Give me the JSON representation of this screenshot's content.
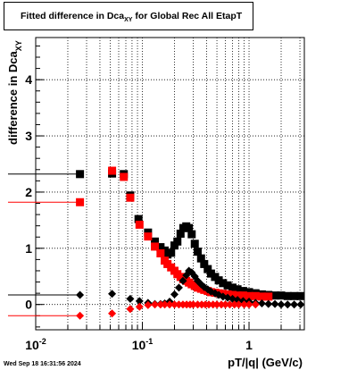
{
  "chart_data": {
    "type": "scatter",
    "title": "Fitted difference in Dca_XY for Global Rec All EtapT",
    "title_main": "Fitted difference in Dca",
    "title_sub": "XY",
    "title_tail": " for Global Rec All EtapT",
    "xlabel": "pT/|q| (GeV/c)",
    "ylabel_main": "difference in Dca",
    "ylabel_sub": "XY",
    "xscale": "log",
    "xlim": [
      0.01,
      3.3
    ],
    "ylim": [
      -0.45,
      4.75
    ],
    "grid": true,
    "x_tick_labels": [
      {
        "x": 0.01,
        "main": "10",
        "exp": "-2"
      },
      {
        "x": 0.1,
        "main": "10",
        "exp": "-1"
      },
      {
        "x": 1,
        "main": "1",
        "exp": ""
      }
    ],
    "y_tick_labels": [
      "0",
      "1",
      "2",
      "3",
      "4"
    ],
    "timestamp": "Wed Sep 18 16:31:56 2024",
    "series": [
      {
        "color": "#000000",
        "marker": "square",
        "points": [
          {
            "x": 0.026,
            "y": 2.32,
            "xerr": [
              0.0055,
              0.026
            ]
          },
          {
            "x": 0.052,
            "y": 2.33
          },
          {
            "x": 0.067,
            "y": 2.32
          },
          {
            "x": 0.077,
            "y": 1.94
          },
          {
            "x": 0.092,
            "y": 1.52,
            "xerr": [
              0.088,
              0.1
            ]
          },
          {
            "x": 0.113,
            "y": 1.28
          },
          {
            "x": 0.131,
            "y": 1.12
          },
          {
            "x": 0.148,
            "y": 1.02
          },
          {
            "x": 0.162,
            "y": 0.96
          },
          {
            "x": 0.172,
            "y": 0.89
          },
          {
            "x": 0.186,
            "y": 0.92
          },
          {
            "x": 0.2,
            "y": 1.05
          },
          {
            "x": 0.213,
            "y": 1.12
          },
          {
            "x": 0.228,
            "y": 1.26
          },
          {
            "x": 0.242,
            "y": 1.36
          },
          {
            "x": 0.258,
            "y": 1.39
          },
          {
            "x": 0.273,
            "y": 1.36
          },
          {
            "x": 0.29,
            "y": 1.25
          },
          {
            "x": 0.31,
            "y": 1.08
          },
          {
            "x": 0.33,
            "y": 0.94
          },
          {
            "x": 0.355,
            "y": 0.82
          },
          {
            "x": 0.38,
            "y": 0.72
          },
          {
            "x": 0.41,
            "y": 0.63
          },
          {
            "x": 0.44,
            "y": 0.55
          },
          {
            "x": 0.48,
            "y": 0.49
          },
          {
            "x": 0.52,
            "y": 0.43
          },
          {
            "x": 0.57,
            "y": 0.38
          },
          {
            "x": 0.63,
            "y": 0.34
          },
          {
            "x": 0.7,
            "y": 0.3
          },
          {
            "x": 0.78,
            "y": 0.27
          },
          {
            "x": 0.88,
            "y": 0.24
          },
          {
            "x": 1.0,
            "y": 0.22
          },
          {
            "x": 1.15,
            "y": 0.2
          },
          {
            "x": 1.32,
            "y": 0.18
          },
          {
            "x": 1.52,
            "y": 0.17
          },
          {
            "x": 1.75,
            "y": 0.16
          },
          {
            "x": 2.0,
            "y": 0.16
          },
          {
            "x": 2.3,
            "y": 0.15
          },
          {
            "x": 2.65,
            "y": 0.15
          },
          {
            "x": 3.05,
            "y": 0.15
          }
        ]
      },
      {
        "color": "#ff0000",
        "marker": "square",
        "points": [
          {
            "x": 0.026,
            "y": 1.82,
            "xerr": [
              0.0055,
              0.026
            ]
          },
          {
            "x": 0.052,
            "y": 2.38
          },
          {
            "x": 0.067,
            "y": 2.27
          },
          {
            "x": 0.077,
            "y": 1.9
          },
          {
            "x": 0.094,
            "y": 1.42
          },
          {
            "x": 0.113,
            "y": 1.21
          },
          {
            "x": 0.131,
            "y": 1.03
          },
          {
            "x": 0.148,
            "y": 0.91
          },
          {
            "x": 0.162,
            "y": 0.78
          },
          {
            "x": 0.172,
            "y": 0.72
          },
          {
            "x": 0.186,
            "y": 0.66
          },
          {
            "x": 0.2,
            "y": 0.6
          },
          {
            "x": 0.213,
            "y": 0.54
          },
          {
            "x": 0.228,
            "y": 0.49
          },
          {
            "x": 0.242,
            "y": 0.45
          },
          {
            "x": 0.258,
            "y": 0.42
          },
          {
            "x": 0.273,
            "y": 0.39
          },
          {
            "x": 0.29,
            "y": 0.36
          },
          {
            "x": 0.31,
            "y": 0.33
          },
          {
            "x": 0.33,
            "y": 0.3
          },
          {
            "x": 0.355,
            "y": 0.28
          },
          {
            "x": 0.38,
            "y": 0.26
          },
          {
            "x": 0.41,
            "y": 0.24
          },
          {
            "x": 0.44,
            "y": 0.22
          },
          {
            "x": 0.48,
            "y": 0.21
          },
          {
            "x": 0.52,
            "y": 0.2
          },
          {
            "x": 0.57,
            "y": 0.19
          },
          {
            "x": 0.63,
            "y": 0.18
          },
          {
            "x": 0.7,
            "y": 0.17
          },
          {
            "x": 0.78,
            "y": 0.16
          },
          {
            "x": 0.88,
            "y": 0.16
          },
          {
            "x": 1.0,
            "y": 0.15
          },
          {
            "x": 1.15,
            "y": 0.15
          },
          {
            "x": 1.32,
            "y": 0.14
          },
          {
            "x": 1.52,
            "y": 0.14
          }
        ]
      },
      {
        "color": "#000000",
        "marker": "diamond",
        "points": [
          {
            "x": 0.026,
            "y": 0.17,
            "xerr": [
              0.0055,
              0.026
            ]
          },
          {
            "x": 0.052,
            "y": 0.19
          },
          {
            "x": 0.077,
            "y": 0.1
          },
          {
            "x": 0.094,
            "y": 0.06
          },
          {
            "x": 0.113,
            "y": 0.03
          },
          {
            "x": 0.131,
            "y": 0.01
          },
          {
            "x": 0.148,
            "y": 0.01
          },
          {
            "x": 0.162,
            "y": 0.02
          },
          {
            "x": 0.18,
            "y": 0.05
          },
          {
            "x": 0.2,
            "y": 0.18
          },
          {
            "x": 0.22,
            "y": 0.3
          },
          {
            "x": 0.24,
            "y": 0.42
          },
          {
            "x": 0.258,
            "y": 0.52
          },
          {
            "x": 0.273,
            "y": 0.6
          },
          {
            "x": 0.29,
            "y": 0.57
          },
          {
            "x": 0.31,
            "y": 0.5
          },
          {
            "x": 0.33,
            "y": 0.42
          },
          {
            "x": 0.355,
            "y": 0.36
          },
          {
            "x": 0.38,
            "y": 0.31
          },
          {
            "x": 0.41,
            "y": 0.27
          },
          {
            "x": 0.44,
            "y": 0.23
          },
          {
            "x": 0.48,
            "y": 0.2
          },
          {
            "x": 0.52,
            "y": 0.17
          },
          {
            "x": 0.57,
            "y": 0.14
          },
          {
            "x": 0.63,
            "y": 0.12
          },
          {
            "x": 0.7,
            "y": 0.1
          },
          {
            "x": 0.78,
            "y": 0.08
          },
          {
            "x": 0.88,
            "y": 0.06
          },
          {
            "x": 1.0,
            "y": 0.05
          },
          {
            "x": 1.15,
            "y": 0.03
          },
          {
            "x": 1.32,
            "y": 0.02
          },
          {
            "x": 1.52,
            "y": 0.01
          },
          {
            "x": 1.75,
            "y": 0.01
          },
          {
            "x": 2.0,
            "y": 0.0
          },
          {
            "x": 2.3,
            "y": 0.0
          },
          {
            "x": 2.65,
            "y": 0.0
          },
          {
            "x": 3.05,
            "y": 0.0
          }
        ]
      },
      {
        "color": "#ff0000",
        "marker": "diamond",
        "points": [
          {
            "x": 0.026,
            "y": -0.2,
            "xerr": [
              0.0055,
              0.026
            ]
          },
          {
            "x": 0.052,
            "y": -0.16
          },
          {
            "x": 0.077,
            "y": -0.08
          },
          {
            "x": 0.094,
            "y": -0.04
          },
          {
            "x": 0.113,
            "y": -0.01
          },
          {
            "x": 0.131,
            "y": 0.0
          },
          {
            "x": 0.148,
            "y": 0.0
          },
          {
            "x": 0.162,
            "y": 0.0
          },
          {
            "x": 0.18,
            "y": 0.0
          },
          {
            "x": 0.2,
            "y": 0.0
          },
          {
            "x": 0.22,
            "y": 0.0
          },
          {
            "x": 0.24,
            "y": 0.0
          },
          {
            "x": 0.26,
            "y": 0.0
          },
          {
            "x": 0.28,
            "y": 0.0
          },
          {
            "x": 0.3,
            "y": 0.0
          },
          {
            "x": 0.33,
            "y": 0.0
          },
          {
            "x": 0.36,
            "y": 0.0
          },
          {
            "x": 0.39,
            "y": 0.0
          },
          {
            "x": 0.42,
            "y": 0.0
          },
          {
            "x": 0.46,
            "y": 0.0
          },
          {
            "x": 0.5,
            "y": 0.0
          },
          {
            "x": 0.55,
            "y": 0.0
          },
          {
            "x": 0.6,
            "y": 0.0
          },
          {
            "x": 0.66,
            "y": 0.0
          },
          {
            "x": 0.73,
            "y": 0.0
          },
          {
            "x": 0.8,
            "y": 0.0
          },
          {
            "x": 0.9,
            "y": 0.0
          },
          {
            "x": 1.0,
            "y": 0.0
          },
          {
            "x": 1.15,
            "y": 0.0
          }
        ]
      }
    ]
  }
}
